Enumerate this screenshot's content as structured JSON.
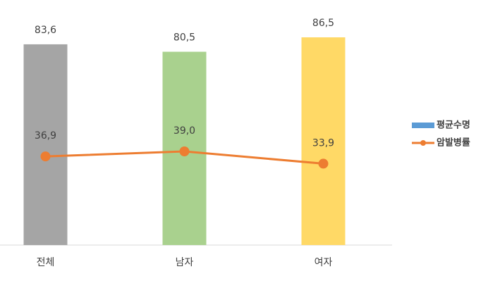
{
  "chart_data": {
    "type": "bar_line",
    "categories": [
      "전체",
      "남자",
      "여자"
    ],
    "series": [
      {
        "name": "평균수명",
        "type": "bar",
        "color": "#5b9bd5",
        "bar_colors": [
          "#a5a5a5",
          "#a9d18e",
          "#ffd966"
        ],
        "values": [
          83.6,
          80.5,
          86.5
        ],
        "value_labels": [
          "83,6",
          "80,5",
          "86,5"
        ]
      },
      {
        "name": "암발병률",
        "type": "line",
        "color": "#ed7d31",
        "values": [
          36.9,
          39.0,
          33.9
        ],
        "value_labels": [
          "36,9",
          "39,0",
          "33,9"
        ]
      }
    ],
    "ylim": [
      0,
      100
    ],
    "legend": "right"
  }
}
